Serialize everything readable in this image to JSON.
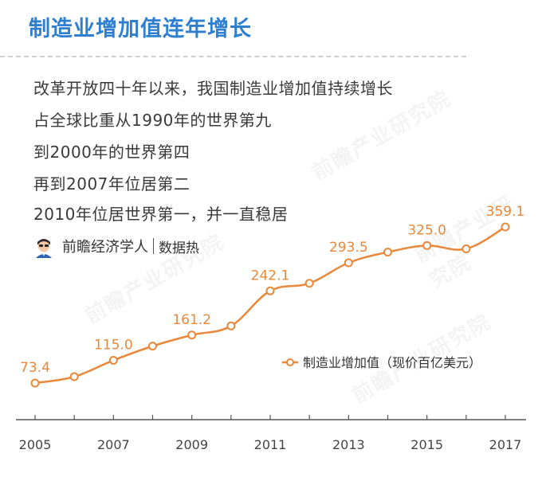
{
  "title": "制造业增加值连年增长",
  "description": [
    "改革开放四十年以来，我国制造业增加值持续增长",
    "占全球比重从1990年的世界第九",
    "到2000年的世界第四",
    "再到2007年位居第二",
    "2010年位居世界第一，并一直稳居"
  ],
  "byline": {
    "author": "前瞻经济学人",
    "source": "数据热",
    "avatar_icon": "person-avatar-icon"
  },
  "watermark": "前瞻产业研究院",
  "colors": {
    "title": "#2f7fd0",
    "series": "#e8883a",
    "axis": "#555555",
    "text": "#3a3a3a"
  },
  "chart_data": {
    "type": "line",
    "x": [
      2005,
      2006,
      2007,
      2008,
      2009,
      2010,
      2011,
      2012,
      2013,
      2014,
      2015,
      2016,
      2017
    ],
    "x_tick_labels": [
      "2005",
      "2007",
      "2009",
      "2011",
      "2013",
      "2015",
      "2017"
    ],
    "series": [
      {
        "name": "制造业增加值（现价百亿美元）",
        "values": [
          73.4,
          85,
          115.0,
          141,
          161.2,
          178,
          242.1,
          256,
          293.5,
          313,
          325.0,
          319,
          359.1
        ]
      }
    ],
    "data_labels": [
      {
        "x": 2005,
        "text": "73.4"
      },
      {
        "x": 2007,
        "text": "115.0"
      },
      {
        "x": 2009,
        "text": "161.2"
      },
      {
        "x": 2011,
        "text": "242.1"
      },
      {
        "x": 2013,
        "text": "293.5"
      },
      {
        "x": 2015,
        "text": "325.0"
      },
      {
        "x": 2017,
        "text": "359.1"
      }
    ],
    "title": "",
    "xlabel": "",
    "ylabel": "",
    "ylim": [
      0,
      400
    ],
    "grid": false,
    "legend_position": "right"
  }
}
